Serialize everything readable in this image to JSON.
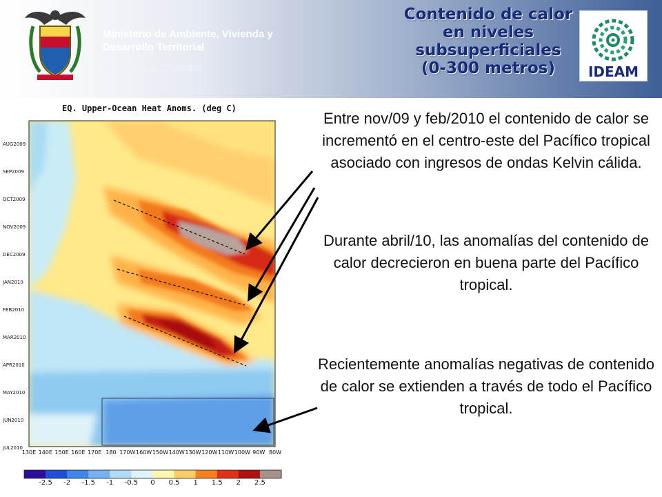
{
  "header": {
    "ministry_line1": "Ministerio de Ambiente, Vivienda y",
    "ministry_line2": "Desarrollo Territorial",
    "republic": "República de Colombia",
    "title_lines": [
      "Contenido de calor",
      "en niveles",
      "subsuperficiales",
      "(0-300 metros)"
    ],
    "logo_text": "IDEAM"
  },
  "chart_data": {
    "type": "heatmap",
    "title": "EQ. Upper-Ocean Heat Anoms. (deg C)",
    "y_tick_labels": [
      "AUG2009",
      "SEP2009",
      "OCT2009",
      "NOV2009",
      "DEC2009",
      "JAN2010",
      "FEB2010",
      "MAR2010",
      "APR2010",
      "MAY2010",
      "JUN2010",
      "JUL2010"
    ],
    "x_tick_labels": [
      "130E",
      "140E",
      "150E",
      "160E",
      "170E",
      "180",
      "170W",
      "160W",
      "150W",
      "140W",
      "130W",
      "120W",
      "110W",
      "100W",
      "90W",
      "80W"
    ],
    "colorbar_labels": [
      "-2.5",
      "-2",
      "-1.5",
      "-1",
      "-0.5",
      "0",
      "0.5",
      "1",
      "1.5",
      "2",
      "2.5"
    ],
    "colorbar_colors": [
      "#2b0f9a",
      "#1f4fd8",
      "#3f86ea",
      "#75b2f2",
      "#b2dbf7",
      "#dff2f8",
      "#fff6b0",
      "#ffcd66",
      "#f77f1f",
      "#e0301a",
      "#b01010",
      "#a8908b"
    ]
  },
  "paragraphs": {
    "p1": "Entre nov/09 y feb/2010 el contenido de calor se incrementó en el centro-este del Pacífico tropical asociado con ingresos de ondas Kelvin cálida.",
    "p2": "Durante abril/10, las anomalías del contenido de calor decrecieron en buena parte del Pacífico tropical.",
    "p3": "Recientemente anomalías negativas de contenido de calor se extienden a través de todo el Pacífico tropical."
  }
}
